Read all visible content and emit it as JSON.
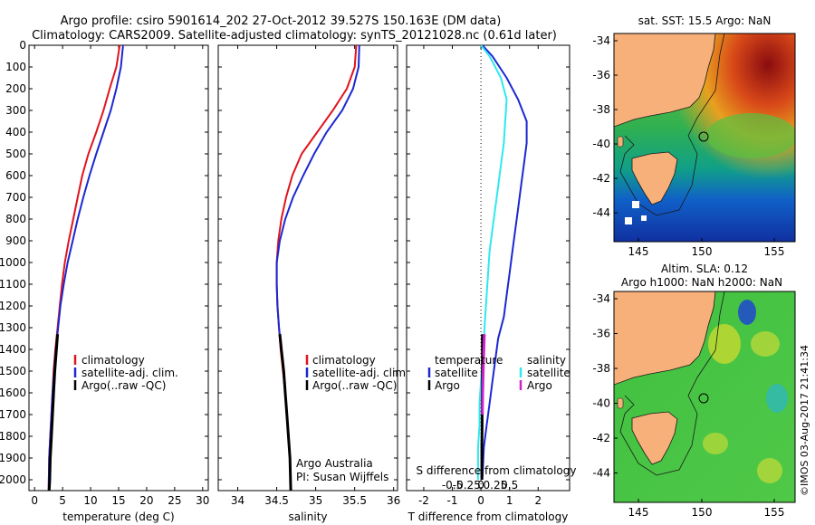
{
  "header": {
    "line1": "Argo profile: csiro 5901614_202 27-Oct-2012 39.527S 150.163E (DM data)",
    "line2": "Climatology: CARS2009. Satellite-adjusted climatology: synTS_20121028.nc (0.61d later)"
  },
  "side_stamp": "©IMOS 03-Aug-2017 21:41:34",
  "colors": {
    "clim": "#e0141e",
    "sat": "#1c28d0",
    "argo": "#000000",
    "sat_s": "#2fe8ee",
    "argo_s": "#cc22cc",
    "land": "#f7b07a"
  },
  "chart_data": [
    {
      "type": "line",
      "xlabel": "temperature (deg C)",
      "ylim": [
        2050,
        0
      ],
      "xlim": [
        -1,
        31
      ],
      "xticks": [
        0,
        5,
        10,
        15,
        20,
        25,
        30
      ],
      "yticks": [
        0,
        100,
        200,
        300,
        400,
        500,
        600,
        700,
        800,
        900,
        1000,
        1100,
        1200,
        1300,
        1400,
        1500,
        1600,
        1700,
        1800,
        1900,
        2000
      ],
      "legend": [
        "climatology",
        "satellite-adj. clim.",
        "Argo(..raw -QC)"
      ],
      "series": [
        {
          "name": "climatology",
          "color": "clim",
          "x": [
            15.2,
            14.6,
            13.4,
            12.3,
            11.0,
            9.6,
            8.5,
            7.7,
            6.9,
            6.1,
            5.4,
            4.9,
            4.5,
            4.1,
            3.7,
            3.4,
            3.2,
            3.0,
            2.8,
            2.6,
            2.5
          ],
          "y": [
            0,
            100,
            200,
            300,
            400,
            500,
            600,
            700,
            800,
            900,
            1000,
            1100,
            1200,
            1300,
            1400,
            1500,
            1600,
            1700,
            1800,
            1900,
            2050
          ]
        },
        {
          "name": "satellite-adj. clim.",
          "color": "sat",
          "x": [
            15.8,
            15.4,
            14.6,
            13.6,
            12.3,
            11.0,
            9.8,
            8.7,
            7.7,
            6.8,
            5.9,
            5.2,
            4.6,
            4.2,
            3.8,
            3.5,
            3.2,
            3.0,
            2.8,
            2.6,
            2.5
          ],
          "y": [
            0,
            100,
            200,
            300,
            400,
            500,
            600,
            700,
            800,
            900,
            1000,
            1100,
            1200,
            1300,
            1400,
            1500,
            1600,
            1700,
            1800,
            1900,
            2050
          ]
        },
        {
          "name": "Argo(..raw -QC)",
          "color": "argo",
          "x": [
            4.1,
            3.9,
            3.6,
            3.4,
            3.2,
            3.0,
            2.8,
            2.7,
            2.6
          ],
          "y": [
            1330,
            1400,
            1500,
            1600,
            1700,
            1800,
            1900,
            2000,
            2050
          ]
        }
      ]
    },
    {
      "type": "line",
      "xlabel": "salinity",
      "ylim": [
        2050,
        0
      ],
      "xlim": [
        33.75,
        36.05
      ],
      "xticks": [
        34,
        34.5,
        35,
        35.5,
        36
      ],
      "legend": [
        "climatology",
        "satellite-adj. clim.",
        "Argo(..raw -QC)"
      ],
      "annotation": [
        "Argo Australia",
        "PI: Susan Wijffels"
      ],
      "series": [
        {
          "name": "climatology",
          "color": "clim",
          "x": [
            35.52,
            35.5,
            35.4,
            35.22,
            35.02,
            34.82,
            34.7,
            34.62,
            34.56,
            34.52,
            34.5,
            34.5,
            34.51,
            34.53,
            34.55,
            34.58,
            34.61,
            34.63,
            34.65,
            34.67,
            34.68
          ],
          "y": [
            0,
            100,
            200,
            300,
            400,
            500,
            600,
            700,
            800,
            900,
            1000,
            1100,
            1200,
            1300,
            1400,
            1500,
            1600,
            1700,
            1800,
            1900,
            2050
          ]
        },
        {
          "name": "satellite-adj. clim.",
          "color": "sat",
          "x": [
            35.56,
            35.55,
            35.48,
            35.34,
            35.14,
            34.98,
            34.84,
            34.71,
            34.61,
            34.54,
            34.5,
            34.5,
            34.51,
            34.53,
            34.56,
            34.59,
            34.61,
            34.63,
            34.65,
            34.67,
            34.68
          ],
          "y": [
            0,
            100,
            200,
            300,
            400,
            500,
            600,
            700,
            800,
            900,
            1000,
            1100,
            1200,
            1300,
            1400,
            1500,
            1600,
            1700,
            1800,
            1900,
            2050
          ]
        },
        {
          "name": "Argo(..raw -QC)",
          "color": "argo",
          "x": [
            34.54,
            34.56,
            34.59,
            34.61,
            34.63,
            34.65,
            34.67,
            34.68
          ],
          "y": [
            1330,
            1400,
            1500,
            1600,
            1700,
            1800,
            1900,
            2050
          ]
        }
      ]
    },
    {
      "type": "line",
      "xlabel": "T difference from climatology",
      "xlabel2": "S difference from climatology",
      "ylim": [
        2050,
        0
      ],
      "xlim": [
        -2.6,
        3.1
      ],
      "xticks": [
        -2,
        -1,
        0,
        1,
        2
      ],
      "s_ticks": [
        "-0.5",
        "-0.25",
        "0",
        "0.25",
        "0.5"
      ],
      "legend_left": [
        "temperature",
        "satellite",
        "Argo"
      ],
      "legend_right": [
        "salinity",
        "satellite",
        "Argo"
      ],
      "series": [
        {
          "name": "satellite",
          "color": "sat",
          "x": [
            0.05,
            0.4,
            0.9,
            1.3,
            1.6,
            1.6,
            1.5,
            1.4,
            1.3,
            1.2,
            1.1,
            1.0,
            0.9,
            0.8,
            0.6,
            0.5,
            0.4,
            0.3,
            0.2,
            0.1,
            0.05
          ],
          "y": [
            0,
            50,
            150,
            250,
            350,
            450,
            550,
            650,
            750,
            850,
            950,
            1050,
            1150,
            1250,
            1350,
            1450,
            1550,
            1650,
            1750,
            1850,
            2000
          ]
        },
        {
          "name": "satellite",
          "color": "sat_s",
          "x": [
            0.0,
            0.3,
            0.7,
            0.9,
            0.85,
            0.8,
            0.7,
            0.6,
            0.5,
            0.4,
            0.3,
            0.25,
            0.2,
            0.15,
            0.1,
            0.05,
            0.0,
            -0.05,
            -0.05,
            -0.1,
            -0.1
          ],
          "y": [
            0,
            50,
            150,
            250,
            350,
            450,
            550,
            650,
            750,
            850,
            950,
            1050,
            1150,
            1250,
            1350,
            1450,
            1550,
            1650,
            1750,
            1850,
            2000
          ]
        },
        {
          "name": "Argo",
          "color": "argo",
          "x": [
            0.05,
            0.05,
            0.05,
            0.04,
            0.04,
            0.03,
            0.03
          ],
          "y": [
            1330,
            1450,
            1550,
            1650,
            1750,
            1850,
            2000
          ]
        },
        {
          "name": "Argo",
          "color": "argo_s",
          "x": [
            0.12,
            0.1,
            0.08,
            0.06,
            0.05
          ],
          "y": [
            1330,
            1400,
            1500,
            1600,
            1700
          ]
        }
      ]
    }
  ],
  "maps": [
    {
      "title": "sat. SST: 15.5 Argo: NaN",
      "xticks": [
        "145",
        "150",
        "155"
      ],
      "yticks": [
        "-34",
        "-36",
        "-38",
        "-40",
        "-42",
        "-44"
      ]
    },
    {
      "title1": "Altim. SLA: 0.12",
      "title2": "Argo h1000: NaN h2000: NaN",
      "xticks": [
        "145",
        "150",
        "155"
      ],
      "yticks": [
        "-34",
        "-36",
        "-38",
        "-40",
        "-42",
        "-44"
      ]
    }
  ]
}
